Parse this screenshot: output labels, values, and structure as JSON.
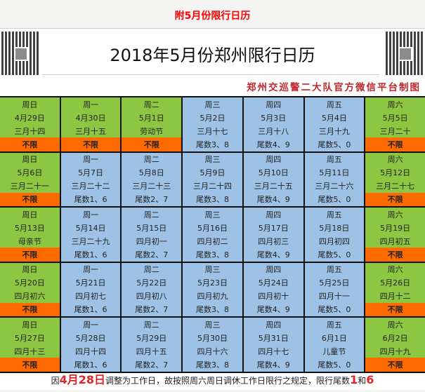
{
  "page_title": "附5月份限行日历",
  "poster": {
    "title": "2018年5月份郑州限行日历",
    "subtitle": "郑州交巡警二大队官方微信平台制图",
    "colors": {
      "weekend": "#8dc641",
      "weekday": "#9dc2e6",
      "no_limit": "#ff6a00",
      "accent": "#e0262b"
    },
    "rows": [
      [
        [
          "周日",
          "4月29日",
          "三月十四",
          "不限"
        ],
        [
          "周一",
          "4月30日",
          "三月十五",
          "不限"
        ],
        [
          "周二",
          "5月1日",
          "劳动节",
          "不限"
        ],
        [
          "周三",
          "5月2日",
          "三月十七",
          "尾数3、8"
        ],
        [
          "周四",
          "5月3日",
          "三月十八",
          "尾数4、9"
        ],
        [
          "周五",
          "5月4日",
          "三月十九",
          "尾数5、0"
        ],
        [
          "周六",
          "5月5日",
          "三月二十",
          "不限"
        ]
      ],
      [
        [
          "周日",
          "5月6日",
          "三月二十一",
          "不限"
        ],
        [
          "周一",
          "5月7日",
          "三月二十二",
          "尾数1、6"
        ],
        [
          "周二",
          "5月8日",
          "三月二十三",
          "尾数2、7"
        ],
        [
          "周三",
          "5月9日",
          "三月二十四",
          "尾数3、8"
        ],
        [
          "周四",
          "5月10日",
          "三月二十五",
          "尾数4、9"
        ],
        [
          "周五",
          "5月11日",
          "三月二十六",
          "尾数5、0"
        ],
        [
          "周六",
          "5月12日",
          "三月二十七",
          "不限"
        ]
      ],
      [
        [
          "周日",
          "5月13日",
          "母亲节",
          "不限"
        ],
        [
          "周一",
          "5月14日",
          "三月二十九",
          "尾数1、6"
        ],
        [
          "周二",
          "5月15日",
          "四月初一",
          "尾数2、7"
        ],
        [
          "周三",
          "5月16日",
          "四月初二",
          "尾数3、8"
        ],
        [
          "周四",
          "5月17日",
          "四月初三",
          "尾数4、9"
        ],
        [
          "周五",
          "5月18日",
          "四月初四",
          "尾数5、0"
        ],
        [
          "周六",
          "5月19日",
          "四月初五",
          "不限"
        ]
      ],
      [
        [
          "周日",
          "5月20日",
          "四月初六",
          "不限"
        ],
        [
          "周一",
          "5月21日",
          "四月初七",
          "尾数1、6"
        ],
        [
          "周二",
          "5月22日",
          "四月初八",
          "尾数2、7"
        ],
        [
          "周三",
          "5月23日",
          "四月初九",
          "尾数3、8"
        ],
        [
          "周四",
          "5月24日",
          "四月初十",
          "尾数4、9"
        ],
        [
          "周五",
          "5月25日",
          "四月十一",
          "尾数5、0"
        ],
        [
          "周六",
          "5月26日",
          "四月十二",
          "不限"
        ]
      ],
      [
        [
          "周日",
          "5月27日",
          "四月十三",
          "不限"
        ],
        [
          "周一",
          "5月28日",
          "四月十四",
          "尾数1、6"
        ],
        [
          "周二",
          "5月29日",
          "四月十五",
          "尾数2、7"
        ],
        [
          "周三",
          "5月30日",
          "四月十六",
          "尾数3、8"
        ],
        [
          "周四",
          "5月31日",
          "四月十七",
          "尾数4、9"
        ],
        [
          "周五",
          "6月1日",
          "儿童节",
          "尾数5、0"
        ],
        [
          "周六",
          "6月2日",
          "四月十九",
          "不限"
        ]
      ]
    ],
    "footer": {
      "p1": "因",
      "date": "4月28日",
      "p2": "调整为工作日，故按照周六周日调休工作日限行之规定，限行尾数",
      "n1": "1",
      "p3": "和",
      "n2": "6"
    }
  }
}
